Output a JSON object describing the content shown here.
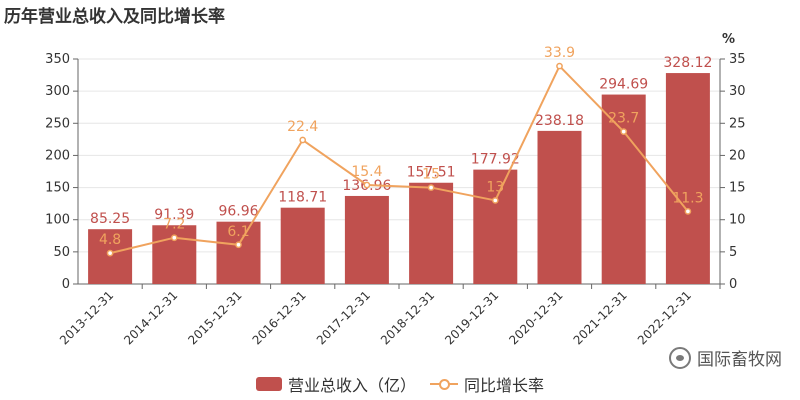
{
  "title": "历年营业总收入及同比增长率",
  "watermark": "国际畜牧网",
  "colors": {
    "bar": "#c0504d",
    "line": "#f0a35e",
    "axis": "#666666",
    "grid": "#e6e6e6"
  },
  "legend": {
    "bar_label": "营业总收入（亿）",
    "line_label": "同比增长率"
  },
  "chart_data": {
    "type": "bar",
    "categories": [
      "2013-12-31",
      "2014-12-31",
      "2015-12-31",
      "2016-12-31",
      "2017-12-31",
      "2018-12-31",
      "2019-12-31",
      "2020-12-31",
      "2021-12-31",
      "2022-12-31"
    ],
    "series": [
      {
        "name": "营业总收入（亿）",
        "type": "bar",
        "axis": "left",
        "values": [
          85.25,
          91.39,
          96.96,
          118.71,
          136.96,
          157.51,
          177.92,
          238.18,
          294.69,
          328.12
        ],
        "labels": [
          "85.25",
          "91.39",
          "96.96",
          "118.71",
          "136.96",
          "157.51",
          "177.92",
          "238.18",
          "294.69",
          "328.12"
        ]
      },
      {
        "name": "同比增长率",
        "type": "line",
        "axis": "right",
        "values": [
          4.8,
          7.2,
          6.1,
          22.4,
          15.4,
          15.0,
          13.0,
          33.9,
          23.7,
          11.3
        ],
        "labels": [
          "4.8",
          "7.2",
          "6.1",
          "22.4",
          "15.4",
          "15",
          "13",
          "33.9",
          "23.7",
          "11.3"
        ]
      }
    ],
    "y_left": {
      "min": 0,
      "max": 350,
      "ticks": [
        "0",
        "50",
        "100",
        "150",
        "200",
        "250",
        "300",
        "350"
      ]
    },
    "y_right": {
      "min": 0,
      "max": 35,
      "unit": "%",
      "ticks": [
        "0",
        "5",
        "10",
        "15",
        "20",
        "25",
        "30",
        "35"
      ]
    },
    "grid": true,
    "legend_position": "bottom"
  }
}
